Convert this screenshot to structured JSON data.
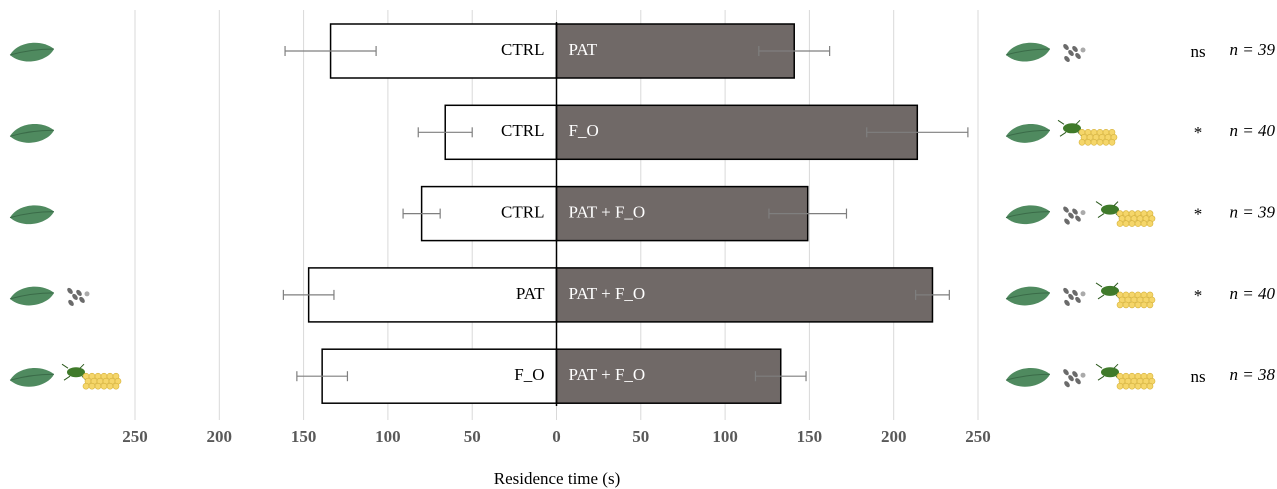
{
  "chart_data": {
    "type": "diverging_bar",
    "x_label": "Residence time (s)",
    "left_labels": [
      "CTRL",
      "CTRL",
      "CTRL",
      "PAT",
      "F_O"
    ],
    "right_labels": [
      "PAT",
      "F_O",
      "PAT + F_O",
      "PAT + F_O",
      "PAT + F_O"
    ],
    "left_values": [
      -134,
      -66,
      -80,
      -147,
      -139
    ],
    "left_errors": [
      27,
      16,
      11,
      15,
      15
    ],
    "right_values": [
      141,
      214,
      149,
      223,
      133
    ],
    "right_errors": [
      21,
      30,
      23,
      10,
      15
    ],
    "significance": [
      "ns",
      "*",
      "*",
      "*",
      "ns"
    ],
    "n_labels": [
      "n = 39",
      "n = 40",
      "n = 39",
      "n = 40",
      "n = 38"
    ],
    "left_color": "#ffffff",
    "right_color": "#706967",
    "xlim": [
      -250,
      250
    ],
    "xticks": [
      {
        "value": -250,
        "label": "250"
      },
      {
        "value": -200,
        "label": "200"
      },
      {
        "value": -150,
        "label": "150"
      },
      {
        "value": -100,
        "label": "100"
      },
      {
        "value": -50,
        "label": "50"
      },
      0,
      50,
      100,
      150,
      200,
      250
    ],
    "grid": true
  }
}
